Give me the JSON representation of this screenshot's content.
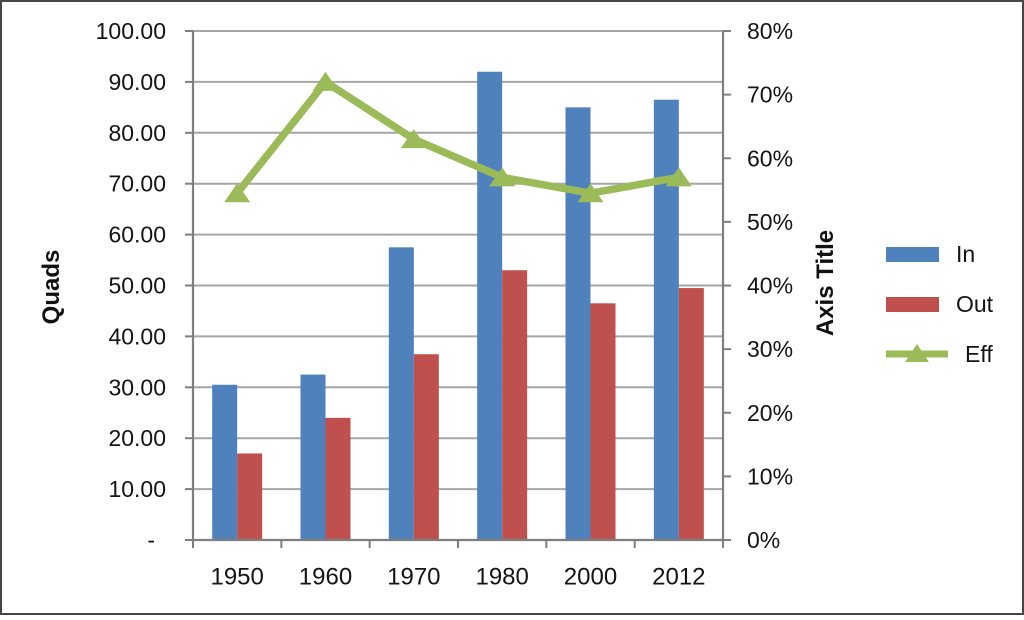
{
  "chart_data": {
    "type": "combo-bar-line",
    "title": "",
    "categories": [
      "1950",
      "1960",
      "1970",
      "1980",
      "2000",
      "2012"
    ],
    "series": [
      {
        "name": "In",
        "type": "bar",
        "axis": "left",
        "color": "#4F81BD",
        "values": [
          30.5,
          32.5,
          57.5,
          92,
          85,
          86.5
        ]
      },
      {
        "name": "Out",
        "type": "bar",
        "axis": "left",
        "color": "#C0504D",
        "values": [
          17,
          24,
          36.5,
          53,
          46.5,
          49.5
        ]
      },
      {
        "name": "Eff",
        "type": "line",
        "axis": "right",
        "color": "#9BBB59",
        "marker": "triangle",
        "values_percent": [
          54.5,
          72,
          63,
          57,
          54.5,
          57
        ]
      }
    ],
    "left_axis": {
      "title": "Quads",
      "min": 0,
      "max": 100,
      "step": 10,
      "tick_labels": [
        "-",
        "10.00",
        "20.00",
        "30.00",
        "40.00",
        "50.00",
        "60.00",
        "70.00",
        "80.00",
        "90.00",
        "100.00"
      ]
    },
    "right_axis": {
      "title": "Axis Title",
      "min": 0,
      "max": 80,
      "step": 10,
      "tick_labels": [
        "0%",
        "10%",
        "20%",
        "30%",
        "40%",
        "50%",
        "60%",
        "70%",
        "80%"
      ]
    },
    "legend": {
      "position": "right",
      "entries": [
        "In",
        "Out",
        "Eff"
      ]
    },
    "grid": true,
    "colors": {
      "gridline": "#A6A6A6",
      "axis_line": "#7F7F7F",
      "text": "#141414"
    }
  }
}
